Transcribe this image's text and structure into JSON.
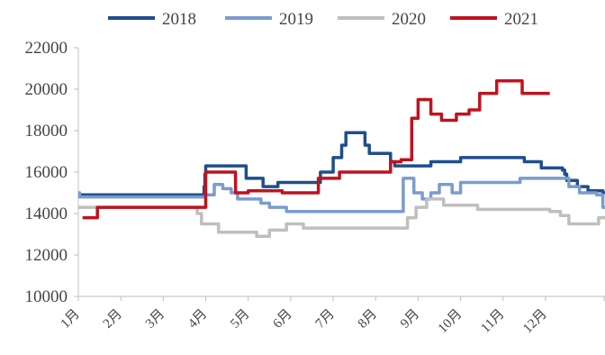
{
  "chart_data": {
    "type": "line",
    "title": "",
    "xlabel": "",
    "ylabel": "",
    "ylim": [
      10000,
      22000
    ],
    "yticks": [
      10000,
      12000,
      14000,
      16000,
      18000,
      20000,
      22000
    ],
    "xlim": [
      0,
      12.4
    ],
    "xtick_labels": [
      "1月",
      "2月",
      "3月",
      "4月",
      "5月",
      "6月",
      "7月",
      "8月",
      "9月",
      "10月",
      "11月",
      "12月"
    ],
    "grid": false,
    "legend_position": "top",
    "series": [
      {
        "name": "2018",
        "color": "#1f4e8c",
        "x": [
          0,
          0.03,
          0.03,
          1.4,
          1.4,
          2.0,
          2.0,
          2.95,
          2.95,
          2.96,
          2.96,
          2.98,
          2.98,
          3.0,
          3.0,
          3.95,
          3.95,
          4.35,
          4.35,
          4.7,
          4.7,
          5.0,
          5.0,
          5.7,
          5.7,
          6.0,
          6.0,
          6.2,
          6.2,
          6.3,
          6.3,
          6.75,
          6.75,
          6.85,
          6.85,
          7.35,
          7.35,
          7.45,
          7.45,
          8.3,
          8.3,
          9.0,
          9.0,
          9.3,
          9.3,
          10.5,
          10.5,
          10.9,
          10.9,
          11.4,
          11.4,
          11.45,
          11.45,
          11.5,
          11.5,
          11.75,
          11.75,
          12.0,
          12.0,
          12.3,
          12.3,
          12.35,
          12.35,
          12.4
        ],
        "y": [
          14900,
          14900,
          14900,
          14900,
          14900,
          14900,
          14900,
          14900,
          14900,
          14900,
          15300,
          15300,
          15900,
          15900,
          16300,
          16300,
          15700,
          15700,
          15300,
          15300,
          15500,
          15500,
          15500,
          15500,
          16000,
          16000,
          16700,
          16700,
          17300,
          17300,
          17900,
          17900,
          17300,
          17300,
          16900,
          16900,
          16500,
          16500,
          16300,
          16300,
          16500,
          16500,
          16700,
          16700,
          16700,
          16700,
          16500,
          16500,
          16200,
          16200,
          16100,
          16100,
          15900,
          15900,
          15600,
          15600,
          15300,
          15300,
          15100,
          15100,
          15100,
          15100,
          15000,
          15000
        ]
      },
      {
        "name": "2019",
        "color": "#7a9ccd",
        "x": [
          0,
          0.03,
          0.03,
          2.05,
          2.05,
          2.1,
          2.1,
          2.2,
          2.2,
          2.35,
          2.35,
          2.4,
          2.4,
          2.45,
          2.45,
          2.5,
          2.5,
          3.0,
          3.0,
          3.2,
          3.2,
          3.4,
          3.4,
          3.6,
          3.6,
          3.75,
          3.75,
          4.3,
          4.3,
          4.5,
          4.5,
          4.9,
          4.9,
          5.35,
          5.35,
          5.45,
          5.45,
          7.65,
          7.65,
          7.7,
          7.7,
          7.9,
          7.9,
          8.1,
          8.1,
          8.3,
          8.3,
          8.5,
          8.5,
          8.8,
          8.8,
          9.0,
          9.0,
          9.3,
          9.3,
          10.4,
          10.4,
          11.55,
          11.55,
          11.8,
          11.8,
          12.2,
          12.2,
          12.35,
          12.35,
          12.4
        ],
        "y": [
          15000,
          15000,
          14800,
          14800,
          14800,
          14800,
          14800,
          14800,
          14800,
          14800,
          14800,
          14800,
          14800,
          14800,
          14800,
          14800,
          14800,
          14800,
          14900,
          14900,
          15400,
          15400,
          15200,
          15200,
          15000,
          15000,
          14700,
          14700,
          14500,
          14500,
          14300,
          14300,
          14100,
          14100,
          14100,
          14100,
          14100,
          14100,
          15700,
          15700,
          15700,
          15700,
          15000,
          15000,
          14700,
          14700,
          15000,
          15000,
          15400,
          15400,
          15000,
          15000,
          15500,
          15500,
          15500,
          15500,
          15700,
          15700,
          15300,
          15300,
          15000,
          15000,
          14900,
          14900,
          14300,
          14300
        ]
      },
      {
        "name": "2020",
        "color": "#bfbfbf",
        "x": [
          0,
          0.03,
          0.03,
          1.4,
          1.4,
          1.9,
          1.9,
          2.2,
          2.2,
          2.5,
          2.5,
          2.7,
          2.7,
          2.8,
          2.8,
          2.9,
          2.9,
          3.3,
          3.3,
          4.2,
          4.2,
          4.5,
          4.5,
          4.9,
          4.9,
          5.3,
          5.3,
          5.6,
          5.6,
          7.75,
          7.75,
          7.95,
          7.95,
          8.2,
          8.2,
          8.6,
          8.6,
          9.4,
          9.4,
          11.1,
          11.1,
          11.35,
          11.35,
          11.55,
          11.55,
          11.85,
          11.85,
          12.25,
          12.25,
          12.4
        ],
        "y": [
          14300,
          14300,
          14300,
          14300,
          14300,
          14300,
          14300,
          14300,
          14300,
          14300,
          14300,
          14300,
          14300,
          14300,
          14000,
          14000,
          13500,
          13500,
          13100,
          13100,
          12900,
          12900,
          13200,
          13200,
          13500,
          13500,
          13300,
          13300,
          13300,
          13300,
          13800,
          13800,
          14300,
          14300,
          14700,
          14700,
          14400,
          14400,
          14200,
          14200,
          14100,
          14100,
          13900,
          13900,
          13500,
          13500,
          13500,
          13500,
          13800,
          13800
        ]
      },
      {
        "name": "2021",
        "color": "#c0121f",
        "x": [
          0.1,
          0.45,
          0.45,
          1.85,
          1.85,
          3.0,
          3.0,
          3.7,
          3.7,
          4.0,
          4.0,
          4.8,
          4.8,
          5.0,
          5.0,
          5.2,
          5.2,
          5.65,
          5.65,
          6.15,
          6.15,
          7.35,
          7.35,
          7.6,
          7.6,
          7.85,
          7.85,
          8.0,
          8.0,
          8.3,
          8.3,
          8.55,
          8.55,
          8.9,
          8.9,
          9.2,
          9.2,
          9.45,
          9.45,
          9.85,
          9.85,
          10.45,
          10.45,
          10.85,
          10.85,
          11.0,
          11.0,
          11.1
        ],
        "y": [
          13800,
          13800,
          14300,
          14300,
          14300,
          14300,
          16000,
          16000,
          15000,
          15000,
          15100,
          15100,
          15000,
          15000,
          15000,
          15000,
          15000,
          15000,
          15700,
          15700,
          16000,
          16000,
          16500,
          16500,
          16600,
          16600,
          18600,
          18600,
          19500,
          19500,
          18800,
          18800,
          18500,
          18500,
          18800,
          18800,
          19000,
          19000,
          19800,
          19800,
          20400,
          20400,
          19800,
          19800,
          19800,
          19800,
          19800,
          19800
        ]
      }
    ]
  }
}
